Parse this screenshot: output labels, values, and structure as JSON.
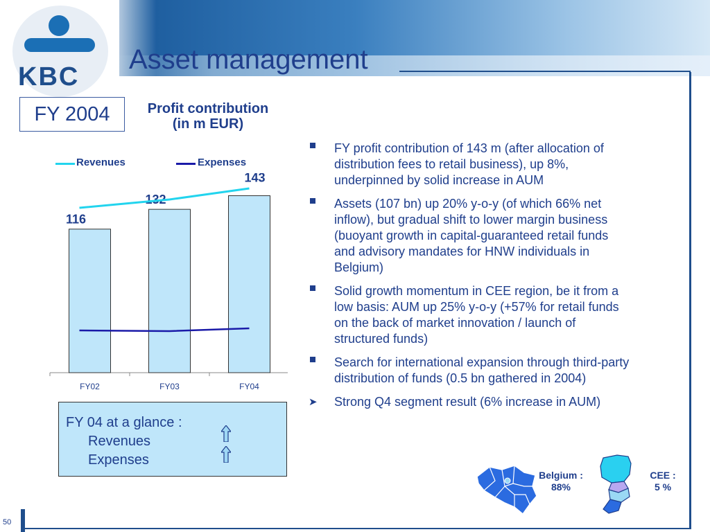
{
  "logo": {
    "text": "KBC"
  },
  "slide": {
    "title": "Asset management",
    "page_number": "50"
  },
  "period_box": "FY 2004",
  "chart_data": {
    "type": "bar",
    "title": "Profit contribution (in m EUR)",
    "title_lines": [
      "Profit contribution",
      "(in m EUR)"
    ],
    "categories": [
      "FY02",
      "FY03",
      "FY04"
    ],
    "series": [
      {
        "name": "Profit contribution",
        "values": [
          116,
          132,
          143
        ],
        "color": "#bfe6fa"
      }
    ],
    "lines": [
      {
        "name": "Revenues",
        "color": "#22d4ee",
        "trend": "rising"
      },
      {
        "name": "Expenses",
        "color": "#1a1aa8",
        "trend": "flat"
      }
    ],
    "data_labels": [
      "116",
      "132",
      "143"
    ],
    "grid": false,
    "legend_position": "top"
  },
  "glance": {
    "title": "FY 04 at a glance :",
    "items": [
      {
        "label": "Revenues",
        "direction": "up-arrow-icon"
      },
      {
        "label": "Expenses",
        "direction": "up-arrow-icon"
      }
    ]
  },
  "bullets": [
    {
      "text": "FY profit contribution of 143 m (after allocation of distribution fees to retail business), up 8%, underpinned by solid increase in AUM",
      "marker": "square"
    },
    {
      "text": "Assets (107 bn) up 20% y-o-y (of which 66% net inflow), but gradual shift to lower margin business (buoyant growth in capital-guaranteed retail funds and advisory mandates for HNW individuals in Belgium)",
      "marker": "square"
    },
    {
      "text": "Solid growth momentum in CEE region, be it from a low basis: AUM up 25% y-o-y (+57% for retail funds on the back of market innovation / launch of structured funds)",
      "marker": "square"
    },
    {
      "text": "Search for international expansion through third-party distribution of funds (0.5 bn gathered in 2004)",
      "marker": "square"
    },
    {
      "text": "Strong Q4 segment result (6% increase in AUM)",
      "marker": "chevron"
    }
  ],
  "maps": {
    "belgium": {
      "label_line1": "Belgium :",
      "label_line2": "88%",
      "color": "#2b6be0"
    },
    "cee": {
      "label_line1": "CEE :",
      "label_line2": "5 %",
      "colors": [
        "#2ad0f0",
        "#b8a8f0",
        "#9ad8f4",
        "#2b6be0"
      ]
    }
  }
}
